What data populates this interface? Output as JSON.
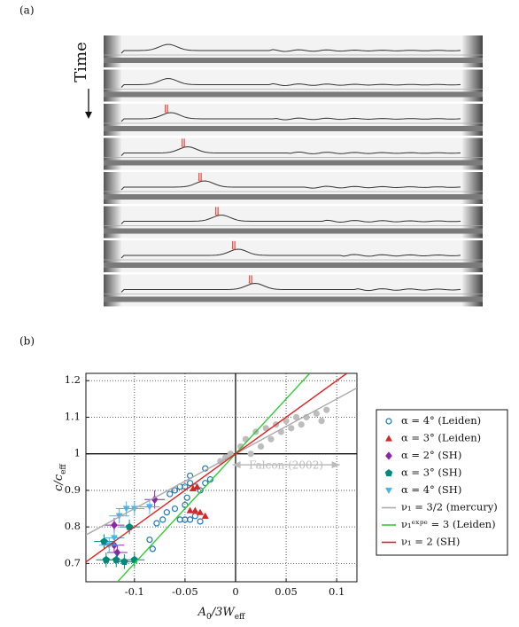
{
  "panel_a": {
    "label": "(a)",
    "time_label": "Time",
    "markers": [
      "⇓",
      "⇓",
      "⇓",
      "⇓",
      "⇓",
      "⇓"
    ]
  },
  "panel_b_label": "(b)",
  "chart_data": {
    "type": "scatter",
    "xlabel": [
      "A",
      "0",
      "/3W",
      "eff"
    ],
    "ylabel": [
      "c/c",
      "eff"
    ],
    "xlim": [
      -0.148,
      0.12
    ],
    "ylim": [
      0.65,
      1.22
    ],
    "xticks": [
      -0.1,
      -0.05,
      0,
      0.05,
      0.1
    ],
    "yticks": [
      0.7,
      0.8,
      0.9,
      1,
      1.1,
      1.2
    ],
    "grid": true,
    "zero_lines": true,
    "legend": "right",
    "annotation": "Falcon (2002)",
    "series": [
      {
        "name": "α = 4° (Leiden)",
        "color": "#1f77b4",
        "marker": "circle-open",
        "x": [
          -0.082,
          -0.085,
          -0.078,
          -0.072,
          -0.068,
          -0.06,
          -0.055,
          -0.05,
          -0.045,
          -0.04,
          -0.035,
          -0.06,
          -0.055,
          -0.05,
          -0.045,
          -0.04,
          -0.035,
          -0.03,
          -0.025,
          -0.045,
          -0.03,
          -0.1,
          -0.065,
          -0.05,
          -0.048
        ],
        "y": [
          0.74,
          0.765,
          0.81,
          0.82,
          0.84,
          0.85,
          0.82,
          0.82,
          0.82,
          0.83,
          0.815,
          0.9,
          0.91,
          0.91,
          0.92,
          0.91,
          0.9,
          0.92,
          0.93,
          0.94,
          0.96,
          0.71,
          0.89,
          0.86,
          0.88
        ]
      },
      {
        "name": "α = 3° (Leiden)",
        "color": "#d62728",
        "marker": "triangle",
        "x": [
          -0.045,
          -0.04,
          -0.035,
          -0.03,
          -0.042,
          -0.038
        ],
        "y": [
          0.845,
          0.845,
          0.84,
          0.83,
          0.905,
          0.91
        ]
      },
      {
        "name": "α = 2° (SH)",
        "color": "#8e24aa",
        "marker": "diamond",
        "x": [
          -0.12,
          -0.117,
          -0.08,
          -0.12
        ],
        "y": [
          0.805,
          0.73,
          0.875,
          0.75
        ],
        "xerr": [
          0.01,
          0.01,
          0.01,
          0.01
        ],
        "yerr": [
          0.02,
          0.02,
          0.025,
          0.02
        ]
      },
      {
        "name": "α = 3° (SH)",
        "color": "#00897b",
        "marker": "pentagon",
        "x": [
          -0.13,
          -0.128,
          -0.118,
          -0.11,
          -0.105,
          -0.1
        ],
        "y": [
          0.76,
          0.71,
          0.71,
          0.705,
          0.8,
          0.71
        ],
        "xerr": [
          0.01,
          0.01,
          0.01,
          0.01,
          0.01,
          0.01
        ],
        "yerr": [
          0.02,
          0.02,
          0.02,
          0.02,
          0.02,
          0.02
        ]
      },
      {
        "name": "α = 4° (SH)",
        "color": "#4fb3e8",
        "marker": "triangle-down",
        "x": [
          -0.125,
          -0.115,
          -0.108,
          -0.1,
          -0.085,
          -0.12
        ],
        "y": [
          0.75,
          0.83,
          0.85,
          0.85,
          0.855,
          0.77
        ],
        "xerr": [
          0.01,
          0.01,
          0.01,
          0.01,
          0.01,
          0.01
        ],
        "yerr": [
          0.02,
          0.02,
          0.02,
          0.02,
          0.02,
          0.02
        ]
      },
      {
        "color": "#bdbdbd",
        "marker": "circle",
        "x": [
          -0.015,
          -0.01,
          -0.005,
          0.01,
          0.02,
          0.03,
          0.04,
          0.05,
          0.06,
          0.07,
          0.08,
          0.09,
          0.025,
          0.035,
          0.045,
          0.055,
          0.065,
          0.085,
          0.015,
          0.005
        ],
        "y": [
          0.98,
          0.99,
          1.0,
          1.04,
          1.06,
          1.07,
          1.08,
          1.09,
          1.1,
          1.1,
          1.11,
          1.12,
          1.02,
          1.04,
          1.06,
          1.07,
          1.08,
          1.09,
          1.0,
          1.02
        ]
      },
      {
        "name": "ν₁ = 3/2 (mercury)",
        "color": "#aaaaaa",
        "line": true,
        "x": [
          -0.148,
          0.12
        ],
        "y": [
          0.778,
          1.18
        ]
      },
      {
        "name": "ν₁ᵉˣᵖᵉ = 3 (Leiden)",
        "color": "#33cc33",
        "line": true,
        "x": [
          -0.1167,
          0.0733
        ],
        "y": [
          0.65,
          1.22
        ]
      },
      {
        "name": "ν₁ = 2 (SH)",
        "color": "#e02020",
        "line": true,
        "x": [
          -0.148,
          0.11
        ],
        "y": [
          0.704,
          1.22
        ]
      }
    ]
  }
}
